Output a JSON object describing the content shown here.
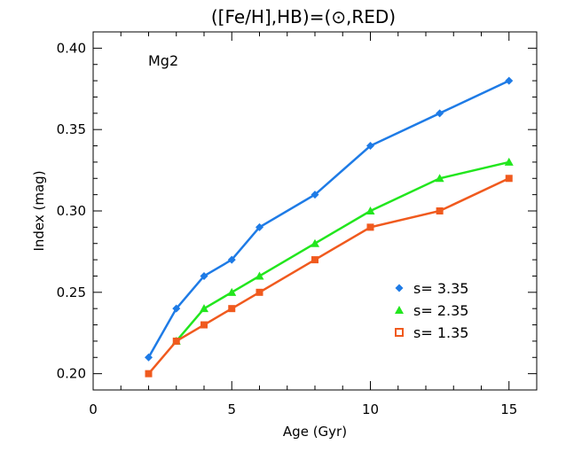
{
  "chart_data": {
    "type": "line",
    "title": "([Fe/H],HB)=(⊙,RED)",
    "xlabel": "Age (Gyr)",
    "ylabel": "Index (mag)",
    "annotation": "Mg2",
    "xlim": [
      0,
      16
    ],
    "ylim": [
      0.19,
      0.41
    ],
    "xticks": [
      0,
      5,
      10,
      15
    ],
    "xtick_labels": [
      "0",
      "5",
      "10",
      "15"
    ],
    "yticks": [
      0.2,
      0.25,
      0.3,
      0.35,
      0.4
    ],
    "ytick_labels": [
      "0.20",
      "0.25",
      "0.30",
      "0.35",
      "0.40"
    ],
    "grid": false,
    "legend_position": "bottom-right",
    "series": [
      {
        "name": "s= 3.35",
        "color": "#1e7be6",
        "marker": "diamond",
        "x": [
          2,
          3,
          4,
          5,
          6,
          8,
          10,
          12.5,
          15
        ],
        "y": [
          0.21,
          0.24,
          0.26,
          0.27,
          0.29,
          0.31,
          0.34,
          0.36,
          0.38
        ]
      },
      {
        "name": "s= 2.35",
        "color": "#22e61e",
        "marker": "triangle",
        "x": [
          3,
          4,
          5,
          6,
          8,
          10,
          12.5,
          15
        ],
        "y": [
          0.22,
          0.24,
          0.25,
          0.26,
          0.28,
          0.3,
          0.32,
          0.33
        ]
      },
      {
        "name": "s= 1.35",
        "color": "#f05a1e",
        "marker": "square",
        "x": [
          2,
          3,
          4,
          5,
          6,
          8,
          10,
          12.5,
          15
        ],
        "y": [
          0.2,
          0.22,
          0.23,
          0.24,
          0.25,
          0.27,
          0.29,
          0.3,
          0.32
        ]
      }
    ]
  }
}
